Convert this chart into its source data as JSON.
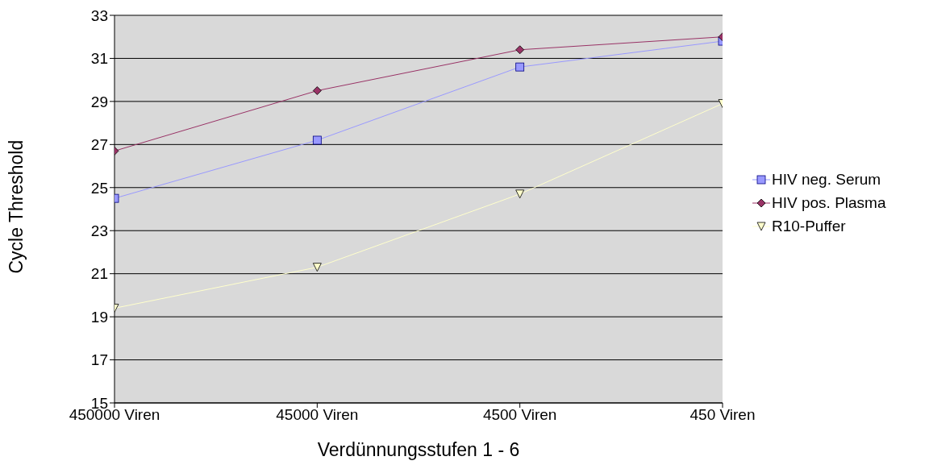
{
  "chart_data": {
    "type": "line",
    "xlabel": "Verdünnungsstufen 1 - 6",
    "ylabel": "Cycle Threshold",
    "categories": [
      "450000 Viren",
      "45000 Viren",
      "4500 Viren",
      "450 Viren"
    ],
    "series": [
      {
        "name": "HIV neg. Serum",
        "color": "#9999ff",
        "marker": "square",
        "values": [
          24.5,
          27.2,
          30.6,
          31.8
        ]
      },
      {
        "name": "HIV pos. Plasma",
        "color": "#993366",
        "marker": "diamond",
        "values": [
          26.7,
          29.5,
          31.4,
          32.0
        ]
      },
      {
        "name": "R10-Puffer",
        "color": "#ffffcc",
        "marker": "triangle",
        "values": [
          19.4,
          21.3,
          24.7,
          28.9
        ]
      }
    ],
    "ylim": [
      15,
      33
    ],
    "yticks": [
      15,
      17,
      19,
      21,
      23,
      25,
      27,
      29,
      31,
      33
    ],
    "grid": "y",
    "legend": "right"
  }
}
